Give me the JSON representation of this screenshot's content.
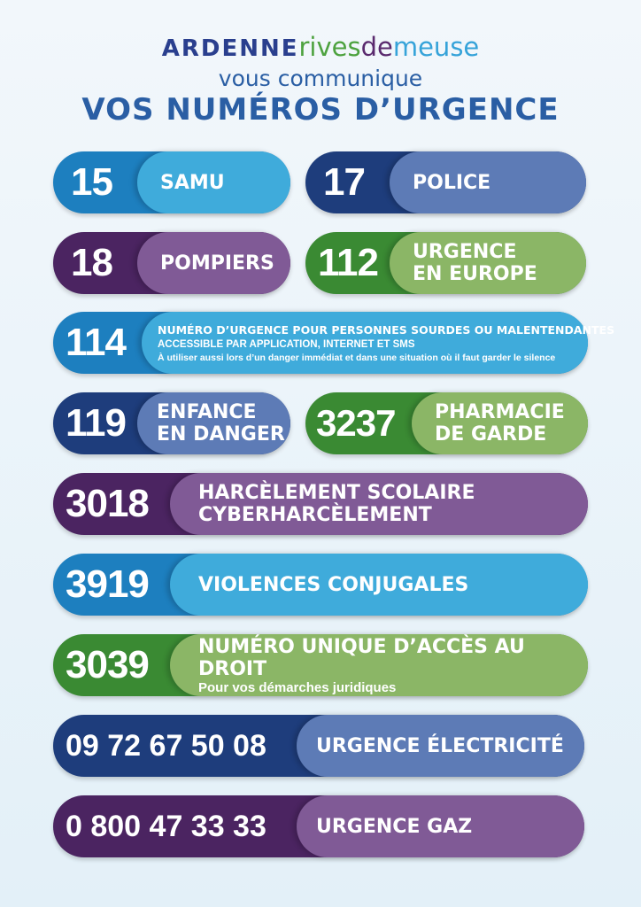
{
  "header": {
    "logo": {
      "part1": "ARDENNE",
      "part2": "rives",
      "part3": "de",
      "part4": "meuse"
    },
    "subtitle": "vous communique",
    "title": "VOS NUMÉROS D’URGENCE"
  },
  "colors": {
    "blue": "#3fabdb",
    "navy": "#5d7bb6",
    "purple": "#805a96",
    "green": "#8bb666"
  },
  "numbers": [
    {
      "number": "15",
      "label": "SAMU"
    },
    {
      "number": "17",
      "label": "POLICE"
    },
    {
      "number": "18",
      "label": "POMPIERS"
    },
    {
      "number": "112",
      "label_line1": "URGENCE",
      "label_line2": "EN EUROPE"
    },
    {
      "number": "114",
      "line1": "NUMÉRO D’URGENCE POUR PERSONNES SOURDES OU MALENTENDANTES",
      "line2": "ACCESSIBLE PAR APPLICATION, INTERNET ET SMS",
      "line3": "À utiliser aussi lors d’un danger immédiat et dans une situation où il faut garder le silence"
    },
    {
      "number": "119",
      "label_line1": "ENFANCE",
      "label_line2": "EN DANGER"
    },
    {
      "number": "3237",
      "label_line1": "PHARMACIE",
      "label_line2": "DE GARDE"
    },
    {
      "number": "3018",
      "label_line1": "HARCÈLEMENT SCOLAIRE",
      "label_line2": "CYBERHARCÈLEMENT"
    },
    {
      "number": "3919",
      "label": "VIOLENCES CONJUGALES"
    },
    {
      "number": "3039",
      "label": "NUMÉRO UNIQUE D’ACCÈS AU DROIT",
      "sublabel": "Pour vos démarches juridiques"
    },
    {
      "number": "09 72 67 50 08",
      "label": "URGENCE ÉLECTRICITÉ"
    },
    {
      "number": "0 800 47 33 33",
      "label": "URGENCE GAZ"
    }
  ]
}
